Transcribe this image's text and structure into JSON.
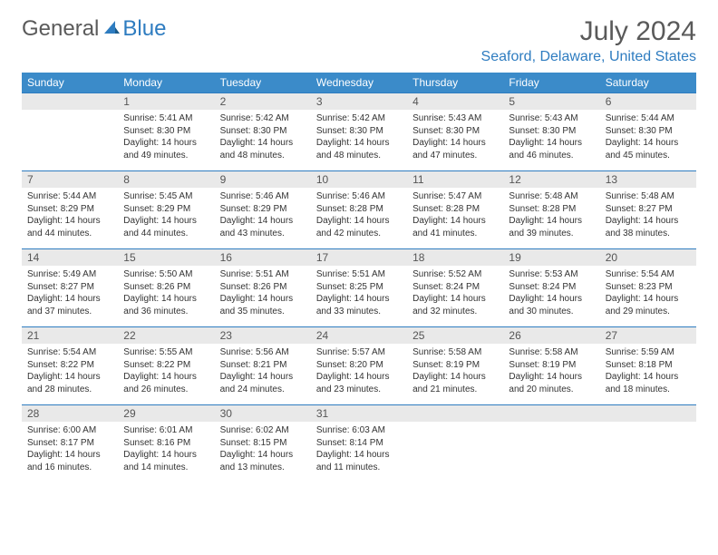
{
  "logo": {
    "text1": "General",
    "text2": "Blue"
  },
  "title": "July 2024",
  "location": "Seaford, Delaware, United States",
  "colors": {
    "header_bg": "#3b8bc9",
    "accent": "#2e7cc0",
    "daynum_bg": "#e9e9e9",
    "text": "#333333",
    "title_text": "#5a5a5a"
  },
  "weekdays": [
    "Sunday",
    "Monday",
    "Tuesday",
    "Wednesday",
    "Thursday",
    "Friday",
    "Saturday"
  ],
  "weeks": [
    {
      "nums": [
        "",
        "1",
        "2",
        "3",
        "4",
        "5",
        "6"
      ],
      "cells": [
        null,
        {
          "sunrise": "Sunrise: 5:41 AM",
          "sunset": "Sunset: 8:30 PM",
          "day1": "Daylight: 14 hours",
          "day2": "and 49 minutes."
        },
        {
          "sunrise": "Sunrise: 5:42 AM",
          "sunset": "Sunset: 8:30 PM",
          "day1": "Daylight: 14 hours",
          "day2": "and 48 minutes."
        },
        {
          "sunrise": "Sunrise: 5:42 AM",
          "sunset": "Sunset: 8:30 PM",
          "day1": "Daylight: 14 hours",
          "day2": "and 48 minutes."
        },
        {
          "sunrise": "Sunrise: 5:43 AM",
          "sunset": "Sunset: 8:30 PM",
          "day1": "Daylight: 14 hours",
          "day2": "and 47 minutes."
        },
        {
          "sunrise": "Sunrise: 5:43 AM",
          "sunset": "Sunset: 8:30 PM",
          "day1": "Daylight: 14 hours",
          "day2": "and 46 minutes."
        },
        {
          "sunrise": "Sunrise: 5:44 AM",
          "sunset": "Sunset: 8:30 PM",
          "day1": "Daylight: 14 hours",
          "day2": "and 45 minutes."
        }
      ]
    },
    {
      "nums": [
        "7",
        "8",
        "9",
        "10",
        "11",
        "12",
        "13"
      ],
      "cells": [
        {
          "sunrise": "Sunrise: 5:44 AM",
          "sunset": "Sunset: 8:29 PM",
          "day1": "Daylight: 14 hours",
          "day2": "and 44 minutes."
        },
        {
          "sunrise": "Sunrise: 5:45 AM",
          "sunset": "Sunset: 8:29 PM",
          "day1": "Daylight: 14 hours",
          "day2": "and 44 minutes."
        },
        {
          "sunrise": "Sunrise: 5:46 AM",
          "sunset": "Sunset: 8:29 PM",
          "day1": "Daylight: 14 hours",
          "day2": "and 43 minutes."
        },
        {
          "sunrise": "Sunrise: 5:46 AM",
          "sunset": "Sunset: 8:28 PM",
          "day1": "Daylight: 14 hours",
          "day2": "and 42 minutes."
        },
        {
          "sunrise": "Sunrise: 5:47 AM",
          "sunset": "Sunset: 8:28 PM",
          "day1": "Daylight: 14 hours",
          "day2": "and 41 minutes."
        },
        {
          "sunrise": "Sunrise: 5:48 AM",
          "sunset": "Sunset: 8:28 PM",
          "day1": "Daylight: 14 hours",
          "day2": "and 39 minutes."
        },
        {
          "sunrise": "Sunrise: 5:48 AM",
          "sunset": "Sunset: 8:27 PM",
          "day1": "Daylight: 14 hours",
          "day2": "and 38 minutes."
        }
      ]
    },
    {
      "nums": [
        "14",
        "15",
        "16",
        "17",
        "18",
        "19",
        "20"
      ],
      "cells": [
        {
          "sunrise": "Sunrise: 5:49 AM",
          "sunset": "Sunset: 8:27 PM",
          "day1": "Daylight: 14 hours",
          "day2": "and 37 minutes."
        },
        {
          "sunrise": "Sunrise: 5:50 AM",
          "sunset": "Sunset: 8:26 PM",
          "day1": "Daylight: 14 hours",
          "day2": "and 36 minutes."
        },
        {
          "sunrise": "Sunrise: 5:51 AM",
          "sunset": "Sunset: 8:26 PM",
          "day1": "Daylight: 14 hours",
          "day2": "and 35 minutes."
        },
        {
          "sunrise": "Sunrise: 5:51 AM",
          "sunset": "Sunset: 8:25 PM",
          "day1": "Daylight: 14 hours",
          "day2": "and 33 minutes."
        },
        {
          "sunrise": "Sunrise: 5:52 AM",
          "sunset": "Sunset: 8:24 PM",
          "day1": "Daylight: 14 hours",
          "day2": "and 32 minutes."
        },
        {
          "sunrise": "Sunrise: 5:53 AM",
          "sunset": "Sunset: 8:24 PM",
          "day1": "Daylight: 14 hours",
          "day2": "and 30 minutes."
        },
        {
          "sunrise": "Sunrise: 5:54 AM",
          "sunset": "Sunset: 8:23 PM",
          "day1": "Daylight: 14 hours",
          "day2": "and 29 minutes."
        }
      ]
    },
    {
      "nums": [
        "21",
        "22",
        "23",
        "24",
        "25",
        "26",
        "27"
      ],
      "cells": [
        {
          "sunrise": "Sunrise: 5:54 AM",
          "sunset": "Sunset: 8:22 PM",
          "day1": "Daylight: 14 hours",
          "day2": "and 28 minutes."
        },
        {
          "sunrise": "Sunrise: 5:55 AM",
          "sunset": "Sunset: 8:22 PM",
          "day1": "Daylight: 14 hours",
          "day2": "and 26 minutes."
        },
        {
          "sunrise": "Sunrise: 5:56 AM",
          "sunset": "Sunset: 8:21 PM",
          "day1": "Daylight: 14 hours",
          "day2": "and 24 minutes."
        },
        {
          "sunrise": "Sunrise: 5:57 AM",
          "sunset": "Sunset: 8:20 PM",
          "day1": "Daylight: 14 hours",
          "day2": "and 23 minutes."
        },
        {
          "sunrise": "Sunrise: 5:58 AM",
          "sunset": "Sunset: 8:19 PM",
          "day1": "Daylight: 14 hours",
          "day2": "and 21 minutes."
        },
        {
          "sunrise": "Sunrise: 5:58 AM",
          "sunset": "Sunset: 8:19 PM",
          "day1": "Daylight: 14 hours",
          "day2": "and 20 minutes."
        },
        {
          "sunrise": "Sunrise: 5:59 AM",
          "sunset": "Sunset: 8:18 PM",
          "day1": "Daylight: 14 hours",
          "day2": "and 18 minutes."
        }
      ]
    },
    {
      "nums": [
        "28",
        "29",
        "30",
        "31",
        "",
        "",
        ""
      ],
      "cells": [
        {
          "sunrise": "Sunrise: 6:00 AM",
          "sunset": "Sunset: 8:17 PM",
          "day1": "Daylight: 14 hours",
          "day2": "and 16 minutes."
        },
        {
          "sunrise": "Sunrise: 6:01 AM",
          "sunset": "Sunset: 8:16 PM",
          "day1": "Daylight: 14 hours",
          "day2": "and 14 minutes."
        },
        {
          "sunrise": "Sunrise: 6:02 AM",
          "sunset": "Sunset: 8:15 PM",
          "day1": "Daylight: 14 hours",
          "day2": "and 13 minutes."
        },
        {
          "sunrise": "Sunrise: 6:03 AM",
          "sunset": "Sunset: 8:14 PM",
          "day1": "Daylight: 14 hours",
          "day2": "and 11 minutes."
        },
        null,
        null,
        null
      ]
    }
  ]
}
